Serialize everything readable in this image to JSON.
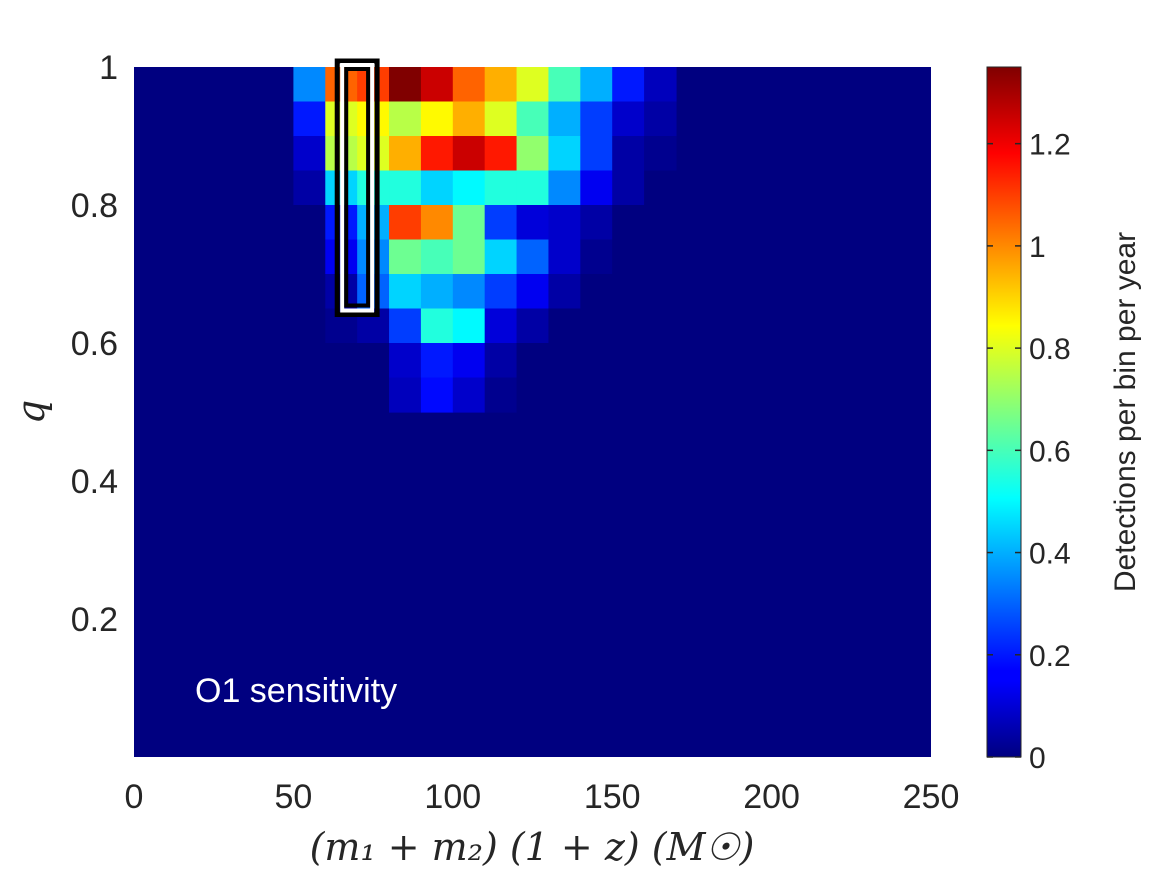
{
  "chart_data": {
    "type": "heatmap",
    "xlabel": "(m₁ + m₂) (1 + z) (M☉)",
    "ylabel": "q",
    "colorbar_label": "Detections per bin per year",
    "annotation": "O1 sensitivity",
    "xlim": [
      0,
      250
    ],
    "ylim": [
      0,
      1
    ],
    "clim": [
      0,
      1.35
    ],
    "colormap": "jet",
    "x_ticks": [
      0,
      50,
      100,
      150,
      200,
      250
    ],
    "y_ticks": [
      0.2,
      0.4,
      0.6,
      0.8,
      1
    ],
    "colorbar_ticks": [
      0,
      0.2,
      0.4,
      0.6,
      0.8,
      1,
      1.2
    ],
    "x_bin_edges": [
      50,
      60,
      70,
      80,
      90,
      100,
      110,
      120,
      130,
      140,
      150,
      160,
      170
    ],
    "y_bin_edges": [
      0.5,
      0.55,
      0.6,
      0.65,
      0.7,
      0.75,
      0.8,
      0.85,
      0.9,
      0.95,
      1.0
    ],
    "z_rows_top_to_bottom": [
      [
        0.35,
        1.05,
        1.1,
        1.35,
        1.25,
        1.05,
        0.95,
        0.8,
        0.6,
        0.4,
        0.2,
        0.08
      ],
      [
        0.2,
        0.8,
        0.85,
        0.75,
        0.85,
        0.95,
        0.8,
        0.6,
        0.4,
        0.25,
        0.1,
        0.05
      ],
      [
        0.1,
        0.75,
        0.8,
        0.95,
        1.15,
        1.25,
        1.15,
        0.7,
        0.45,
        0.25,
        0.05,
        0.02
      ],
      [
        0.05,
        0.45,
        0.55,
        0.55,
        0.45,
        0.5,
        0.55,
        0.55,
        0.35,
        0.15,
        0.05,
        0
      ],
      [
        0,
        0.2,
        0.4,
        1.1,
        1.0,
        0.65,
        0.25,
        0.12,
        0.1,
        0.05,
        0,
        0
      ],
      [
        0,
        0.15,
        0.35,
        0.65,
        0.6,
        0.65,
        0.45,
        0.3,
        0.1,
        0.02,
        0,
        0
      ],
      [
        0,
        0.05,
        0.3,
        0.45,
        0.4,
        0.35,
        0.25,
        0.15,
        0.05,
        0,
        0,
        0
      ],
      [
        0,
        0.02,
        0.05,
        0.25,
        0.55,
        0.5,
        0.12,
        0.05,
        0,
        0,
        0,
        0
      ],
      [
        0,
        0,
        0,
        0.1,
        0.2,
        0.15,
        0.05,
        0,
        0,
        0,
        0,
        0
      ],
      [
        0,
        0,
        0,
        0.08,
        0.18,
        0.1,
        0.02,
        0,
        0,
        0,
        0,
        0
      ]
    ],
    "highlight_box": {
      "x_range": [
        65,
        75
      ],
      "y_range": [
        0.65,
        1.0
      ]
    },
    "background_value": 0
  }
}
